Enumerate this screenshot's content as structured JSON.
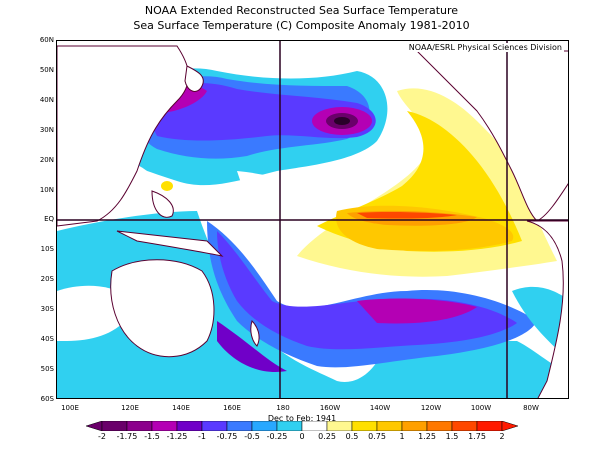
{
  "title_line1": "NOAA Extended Reconstructed Sea Surface Temperature",
  "title_line2": "Sea Surface Temperature (C) Composite Anomaly 1981-2010",
  "credit": "NOAA/ESRL Physical Sciences Division",
  "season_label": "Dec to Feb: 1941",
  "lat_labels": [
    "60N",
    "50N",
    "40N",
    "30N",
    "20N",
    "10N",
    "EQ",
    "10S",
    "20S",
    "30S",
    "40S",
    "50S",
    "60S"
  ],
  "lon_labels": [
    "100E",
    "120E",
    "140E",
    "160E",
    "180",
    "160W",
    "140W",
    "120W",
    "100W",
    "80W"
  ],
  "colorbar": {
    "labels": [
      "-2",
      "-1.75",
      "-1.5",
      "-1.25",
      "-1",
      "-0.75",
      "-0.5",
      "-0.25",
      "0",
      "0.25",
      "0.5",
      "0.75",
      "1",
      "1.25",
      "1.5",
      "1.75",
      "2"
    ],
    "colors": [
      "#6a006a",
      "#8c008c",
      "#b400b4",
      "#7000c8",
      "#5a3aff",
      "#3a7aff",
      "#28a8ff",
      "#30d0f0",
      "#ffffff",
      "#fff890",
      "#ffe000",
      "#ffc800",
      "#ffa000",
      "#ff7800",
      "#ff4800",
      "#ff1a00"
    ]
  },
  "colors": {
    "land_outline": "#5a0030",
    "grid_line": "#000000"
  }
}
